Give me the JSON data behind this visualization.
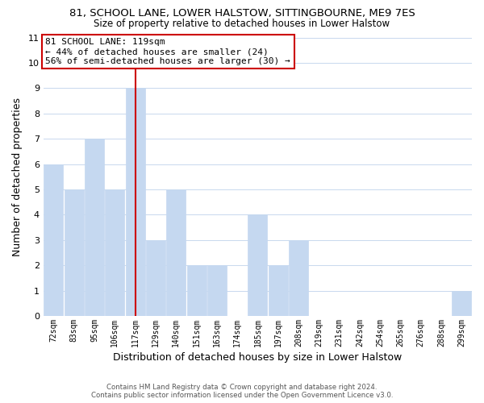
{
  "title": "81, SCHOOL LANE, LOWER HALSTOW, SITTINGBOURNE, ME9 7ES",
  "subtitle": "Size of property relative to detached houses in Lower Halstow",
  "xlabel": "Distribution of detached houses by size in Lower Halstow",
  "ylabel": "Number of detached properties",
  "categories": [
    "72sqm",
    "83sqm",
    "95sqm",
    "106sqm",
    "117sqm",
    "129sqm",
    "140sqm",
    "151sqm",
    "163sqm",
    "174sqm",
    "185sqm",
    "197sqm",
    "208sqm",
    "219sqm",
    "231sqm",
    "242sqm",
    "254sqm",
    "265sqm",
    "276sqm",
    "288sqm",
    "299sqm"
  ],
  "values": [
    6,
    5,
    7,
    5,
    9,
    3,
    5,
    2,
    2,
    0,
    4,
    2,
    3,
    0,
    0,
    0,
    0,
    0,
    0,
    0,
    1
  ],
  "bar_color": "#c5d8f0",
  "bar_edge_color": "#a8c4e0",
  "highlight_bar_index": 4,
  "highlight_line_color": "#cc0000",
  "ylim": [
    0,
    11
  ],
  "yticks": [
    0,
    1,
    2,
    3,
    4,
    5,
    6,
    7,
    8,
    9,
    10,
    11
  ],
  "annotation_text": "81 SCHOOL LANE: 119sqm\n← 44% of detached houses are smaller (24)\n56% of semi-detached houses are larger (30) →",
  "annotation_box_color": "#ffffff",
  "annotation_box_edge": "#cc0000",
  "footer_line1": "Contains HM Land Registry data © Crown copyright and database right 2024.",
  "footer_line2": "Contains public sector information licensed under the Open Government Licence v3.0.",
  "background_color": "#ffffff",
  "grid_color": "#c8d8ee"
}
